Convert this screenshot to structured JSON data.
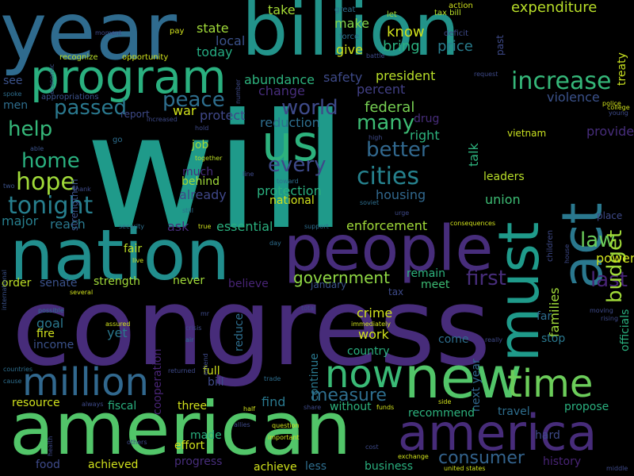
{
  "wordcloud": {
    "background": "#000000",
    "words": [
      {
        "text": "will",
        "color": "#1f9a8a"
      },
      {
        "text": "congress",
        "color": "#472c7a"
      },
      {
        "text": "year",
        "color": "#2f6b8e"
      },
      {
        "text": "billion",
        "color": "#22938a"
      },
      {
        "text": "american",
        "color": "#52c569"
      },
      {
        "text": "nation",
        "color": "#218e8d"
      },
      {
        "text": "people",
        "color": "#472d7b"
      },
      {
        "text": "program",
        "color": "#2ab07f"
      },
      {
        "text": "new",
        "color": "#52c569"
      },
      {
        "text": "must",
        "color": "#1f9a8a"
      },
      {
        "text": "act",
        "color": "#2a788e"
      },
      {
        "text": "america",
        "color": "#472c7a"
      },
      {
        "text": "now",
        "color": "#3aba76"
      },
      {
        "text": "us",
        "color": "#2db27d"
      },
      {
        "text": "million",
        "color": "#31688e"
      },
      {
        "text": "time",
        "color": "#6ccd5a"
      },
      {
        "text": "increase",
        "color": "#35b779"
      },
      {
        "text": "passed",
        "color": "#2a788e"
      },
      {
        "text": "peace",
        "color": "#2e6e8e"
      },
      {
        "text": "world",
        "color": "#3e4a89"
      },
      {
        "text": "many",
        "color": "#3dbc74"
      },
      {
        "text": "better",
        "color": "#31688e"
      },
      {
        "text": "cities",
        "color": "#26828e"
      },
      {
        "text": "every",
        "color": "#3e4a89"
      },
      {
        "text": "hope",
        "color": "#a0da39"
      },
      {
        "text": "tonight",
        "color": "#277f8e"
      },
      {
        "text": "help",
        "color": "#35b779"
      },
      {
        "text": "home",
        "color": "#2ab07f"
      },
      {
        "text": "law",
        "color": "#6ccd5a"
      },
      {
        "text": "last",
        "color": "#482475"
      },
      {
        "text": "first",
        "color": "#472d7b"
      },
      {
        "text": "budget",
        "color": "#a0da39"
      },
      {
        "text": "government",
        "color": "#8fd744"
      },
      {
        "text": "measure",
        "color": "#2e6e8e"
      },
      {
        "text": "consumer",
        "color": "#33638d"
      },
      {
        "text": "expenditure",
        "color": "#b8de29"
      },
      {
        "text": "know",
        "color": "#d0e11c"
      },
      {
        "text": "bring",
        "color": "#2ab07f"
      },
      {
        "text": "price",
        "color": "#287d8e"
      },
      {
        "text": "give",
        "color": "#d0e11c"
      },
      {
        "text": "state",
        "color": "#a0da39"
      },
      {
        "text": "local",
        "color": "#3b528b"
      },
      {
        "text": "today",
        "color": "#25ab82"
      },
      {
        "text": "take",
        "color": "#a5db36"
      },
      {
        "text": "make",
        "color": "#84d44b"
      },
      {
        "text": "abundance",
        "color": "#2db27d"
      },
      {
        "text": "safety",
        "color": "#3e4a89"
      },
      {
        "text": "president",
        "color": "#b8de29"
      },
      {
        "text": "percent",
        "color": "#424086"
      },
      {
        "text": "change",
        "color": "#472d7b"
      },
      {
        "text": "federal",
        "color": "#77d153"
      },
      {
        "text": "reduction",
        "color": "#2e6e8e"
      },
      {
        "text": "protect",
        "color": "#3f4788"
      },
      {
        "text": "war",
        "color": "#d0e11c"
      },
      {
        "text": "drug",
        "color": "#472d7b"
      },
      {
        "text": "right",
        "color": "#2db27d"
      },
      {
        "text": "talk",
        "color": "#2db27d"
      },
      {
        "text": "violence",
        "color": "#3b528b"
      },
      {
        "text": "provide",
        "color": "#472d7b"
      },
      {
        "text": "vietnam",
        "color": "#c8e020"
      },
      {
        "text": "leaders",
        "color": "#b8de29"
      },
      {
        "text": "union",
        "color": "#3dbc74"
      },
      {
        "text": "housing",
        "color": "#31688e"
      },
      {
        "text": "protection",
        "color": "#2ab07f"
      },
      {
        "text": "national",
        "color": "#d0e11c"
      },
      {
        "text": "job",
        "color": "#a0da39"
      },
      {
        "text": "behind",
        "color": "#a0da39"
      },
      {
        "text": "much",
        "color": "#472d7b"
      },
      {
        "text": "already",
        "color": "#3f4788"
      },
      {
        "text": "reach",
        "color": "#2a788e"
      },
      {
        "text": "ask",
        "color": "#472d7b"
      },
      {
        "text": "essential",
        "color": "#2ab07f"
      },
      {
        "text": "enforcement",
        "color": "#a0da39"
      },
      {
        "text": "major",
        "color": "#277f8e"
      },
      {
        "text": "fair",
        "color": "#bddf26"
      },
      {
        "text": "power",
        "color": "#d0e11c"
      },
      {
        "text": "families",
        "color": "#a0da39"
      },
      {
        "text": "officials",
        "color": "#2ab07f"
      },
      {
        "text": "senate",
        "color": "#3b528b"
      },
      {
        "text": "strength",
        "color": "#a0da39"
      },
      {
        "text": "never",
        "color": "#a0da39"
      },
      {
        "text": "believe",
        "color": "#482475"
      },
      {
        "text": "remain",
        "color": "#2db27d"
      },
      {
        "text": "meet",
        "color": "#3dbc74"
      },
      {
        "text": "january",
        "color": "#3b528b"
      },
      {
        "text": "order",
        "color": "#bddf26"
      },
      {
        "text": "goal",
        "color": "#2a788e"
      },
      {
        "text": "fire",
        "color": "#d0e11c"
      },
      {
        "text": "income",
        "color": "#3b528b"
      },
      {
        "text": "yet",
        "color": "#2a788e"
      },
      {
        "text": "cooperation",
        "color": "#482475"
      },
      {
        "text": "reduce",
        "color": "#2e6e8e"
      },
      {
        "text": "continue",
        "color": "#2a788e"
      },
      {
        "text": "crime",
        "color": "#d0e11c"
      },
      {
        "text": "work",
        "color": "#d0e11c"
      },
      {
        "text": "country",
        "color": "#2ab07f"
      },
      {
        "text": "come",
        "color": "#2e6e8e"
      },
      {
        "text": "next year",
        "color": "#31688e"
      },
      {
        "text": "far",
        "color": "#2e6e8e"
      },
      {
        "text": "stop",
        "color": "#2a788e"
      },
      {
        "text": "full",
        "color": "#d0e11c"
      },
      {
        "text": "bill",
        "color": "#3e4a89"
      },
      {
        "text": "resource",
        "color": "#d0e11c"
      },
      {
        "text": "fiscal",
        "color": "#2ab07f"
      },
      {
        "text": "three",
        "color": "#d0e11c"
      },
      {
        "text": "find",
        "color": "#2a788e"
      },
      {
        "text": "without",
        "color": "#2db27d"
      },
      {
        "text": "recommend",
        "color": "#2db27d"
      },
      {
        "text": "travel",
        "color": "#2e6e8e"
      },
      {
        "text": "propose",
        "color": "#2ab07f"
      },
      {
        "text": "made",
        "color": "#2ab07f"
      },
      {
        "text": "effort",
        "color": "#d0e11c"
      },
      {
        "text": "progress",
        "color": "#472d7b"
      },
      {
        "text": "hard",
        "color": "#3e4a89"
      },
      {
        "text": "food",
        "color": "#3e4a89"
      },
      {
        "text": "achieved",
        "color": "#d0e11c"
      },
      {
        "text": "achieve",
        "color": "#d0e11c"
      },
      {
        "text": "less",
        "color": "#2e6e8e"
      },
      {
        "text": "business",
        "color": "#2ab07f"
      },
      {
        "text": "history",
        "color": "#482475"
      },
      {
        "text": "see",
        "color": "#3b528b"
      },
      {
        "text": "men",
        "color": "#2e6e8e"
      },
      {
        "text": "strengthen",
        "color": "#3b528b"
      },
      {
        "text": "tax",
        "color": "#3e4a89"
      },
      {
        "text": "treaty",
        "color": "#c8e020"
      },
      {
        "text": "past",
        "color": "#3e4a89"
      },
      {
        "text": "deficit",
        "color": "#3e4a89"
      },
      {
        "text": "tax bill",
        "color": "#b8de29"
      },
      {
        "text": "let",
        "color": "#a0da39"
      },
      {
        "text": "great",
        "color": "#2e6e8e"
      },
      {
        "text": "action",
        "color": "#d0e11c"
      },
      {
        "text": "force",
        "color": "#2e6e8e"
      },
      {
        "text": "pay",
        "color": "#d0e11c"
      },
      {
        "text": "opportunity",
        "color": "#d0e11c"
      },
      {
        "text": "recognize",
        "color": "#b8de29"
      },
      {
        "text": "economic",
        "color": "#3b528b"
      },
      {
        "text": "moment",
        "color": "#3e4a89"
      },
      {
        "text": "spoke",
        "color": "#2e6e8e"
      },
      {
        "text": "appropriations",
        "color": "#3b528b"
      },
      {
        "text": "increased",
        "color": "#3e4a89"
      },
      {
        "text": "report",
        "color": "#3e4a89"
      },
      {
        "text": "hold",
        "color": "#3e4a89"
      },
      {
        "text": "together",
        "color": "#bddf26"
      },
      {
        "text": "able",
        "color": "#3b528b"
      },
      {
        "text": "go",
        "color": "#2e6e8e"
      },
      {
        "text": "two",
        "color": "#3b528b"
      },
      {
        "text": "thank",
        "color": "#3e4a89"
      },
      {
        "text": "line",
        "color": "#3e4a89"
      },
      {
        "text": "toward",
        "color": "#2e6e8e"
      },
      {
        "text": "soviet",
        "color": "#2e6e8e"
      },
      {
        "text": "urge",
        "color": "#3e4a89"
      },
      {
        "text": "high",
        "color": "#3e4a89"
      },
      {
        "text": "still",
        "color": "#2e6e8e"
      },
      {
        "text": "true",
        "color": "#d0e11c"
      },
      {
        "text": "security",
        "color": "#2e6e8e"
      },
      {
        "text": "support",
        "color": "#2e6e8e"
      },
      {
        "text": "consequences",
        "color": "#d0e11c"
      },
      {
        "text": "place",
        "color": "#3e4a89"
      },
      {
        "text": "house",
        "color": "#3e4a89"
      },
      {
        "text": "college",
        "color": "#d0e11c"
      },
      {
        "text": "police",
        "color": "#d0e11c"
      },
      {
        "text": "young",
        "color": "#3e4a89"
      },
      {
        "text": "request",
        "color": "#3e4a89"
      },
      {
        "text": "number",
        "color": "#3e4a89"
      },
      {
        "text": "children",
        "color": "#3e4a89"
      },
      {
        "text": "day",
        "color": "#2e6e8e"
      },
      {
        "text": "live",
        "color": "#d0e11c"
      },
      {
        "text": "international",
        "color": "#3b528b"
      },
      {
        "text": "several",
        "color": "#d0e11c"
      },
      {
        "text": "possible",
        "color": "#2e6e8e"
      },
      {
        "text": "mr",
        "color": "#3e4a89"
      },
      {
        "text": "total",
        "color": "#3e4a89"
      },
      {
        "text": "assured",
        "color": "#d0e11c"
      },
      {
        "text": "crisis",
        "color": "#3e4a89"
      },
      {
        "text": "immediately",
        "color": "#d0e11c"
      },
      {
        "text": "air",
        "color": "#2e6e8e"
      },
      {
        "text": "extend",
        "color": "#3e4a89"
      },
      {
        "text": "really",
        "color": "#3e4a89"
      },
      {
        "text": "moving",
        "color": "#3e4a89"
      },
      {
        "text": "rising",
        "color": "#3e4a89"
      },
      {
        "text": "countries",
        "color": "#2e6e8e"
      },
      {
        "text": "cause",
        "color": "#2e6e8e"
      },
      {
        "text": "returned",
        "color": "#3e4a89"
      },
      {
        "text": "trade",
        "color": "#2e6e8e"
      },
      {
        "text": "always",
        "color": "#3e4a89"
      },
      {
        "text": "health",
        "color": "#3e4a89"
      },
      {
        "text": "half",
        "color": "#d0e11c"
      },
      {
        "text": "allies",
        "color": "#3e4a89"
      },
      {
        "text": "question",
        "color": "#d0e11c"
      },
      {
        "text": "important",
        "color": "#d0e11c"
      },
      {
        "text": "share",
        "color": "#3e4a89"
      },
      {
        "text": "funds",
        "color": "#d0e11c"
      },
      {
        "text": "side",
        "color": "#d0e11c"
      },
      {
        "text": "others",
        "color": "#3e4a89"
      },
      {
        "text": "cost",
        "color": "#3e4a89"
      },
      {
        "text": "exchange",
        "color": "#d0e11c"
      },
      {
        "text": "united states",
        "color": "#d0e11c"
      },
      {
        "text": "middle",
        "color": "#3e4a89"
      },
      {
        "text": "battle",
        "color": "#3e4a89"
      }
    ]
  }
}
